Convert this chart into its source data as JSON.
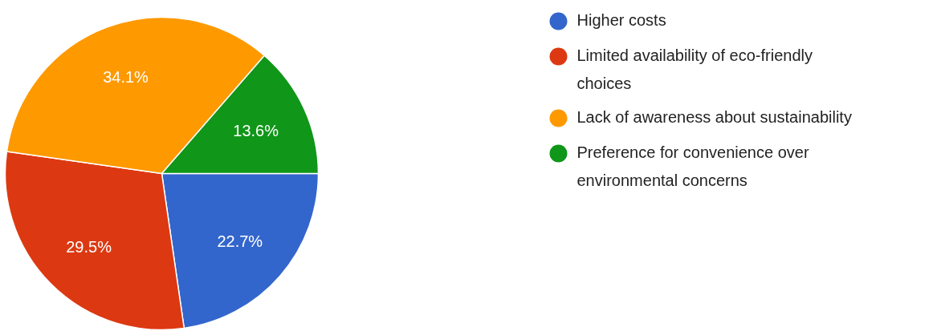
{
  "chart_data": {
    "type": "pie",
    "categories": [
      "Higher costs",
      "Limited availability of eco-friendly choices",
      "Lack of awareness about sustainability",
      "Preference for convenience over environmental concerns"
    ],
    "values": [
      22.7,
      29.5,
      34.1,
      13.6
    ],
    "colors": [
      "#3366cc",
      "#dc3912",
      "#ff9900",
      "#109618"
    ],
    "value_labels": [
      "22.7%",
      "29.5%",
      "34.1%",
      "13.6%"
    ],
    "legend": "right"
  }
}
